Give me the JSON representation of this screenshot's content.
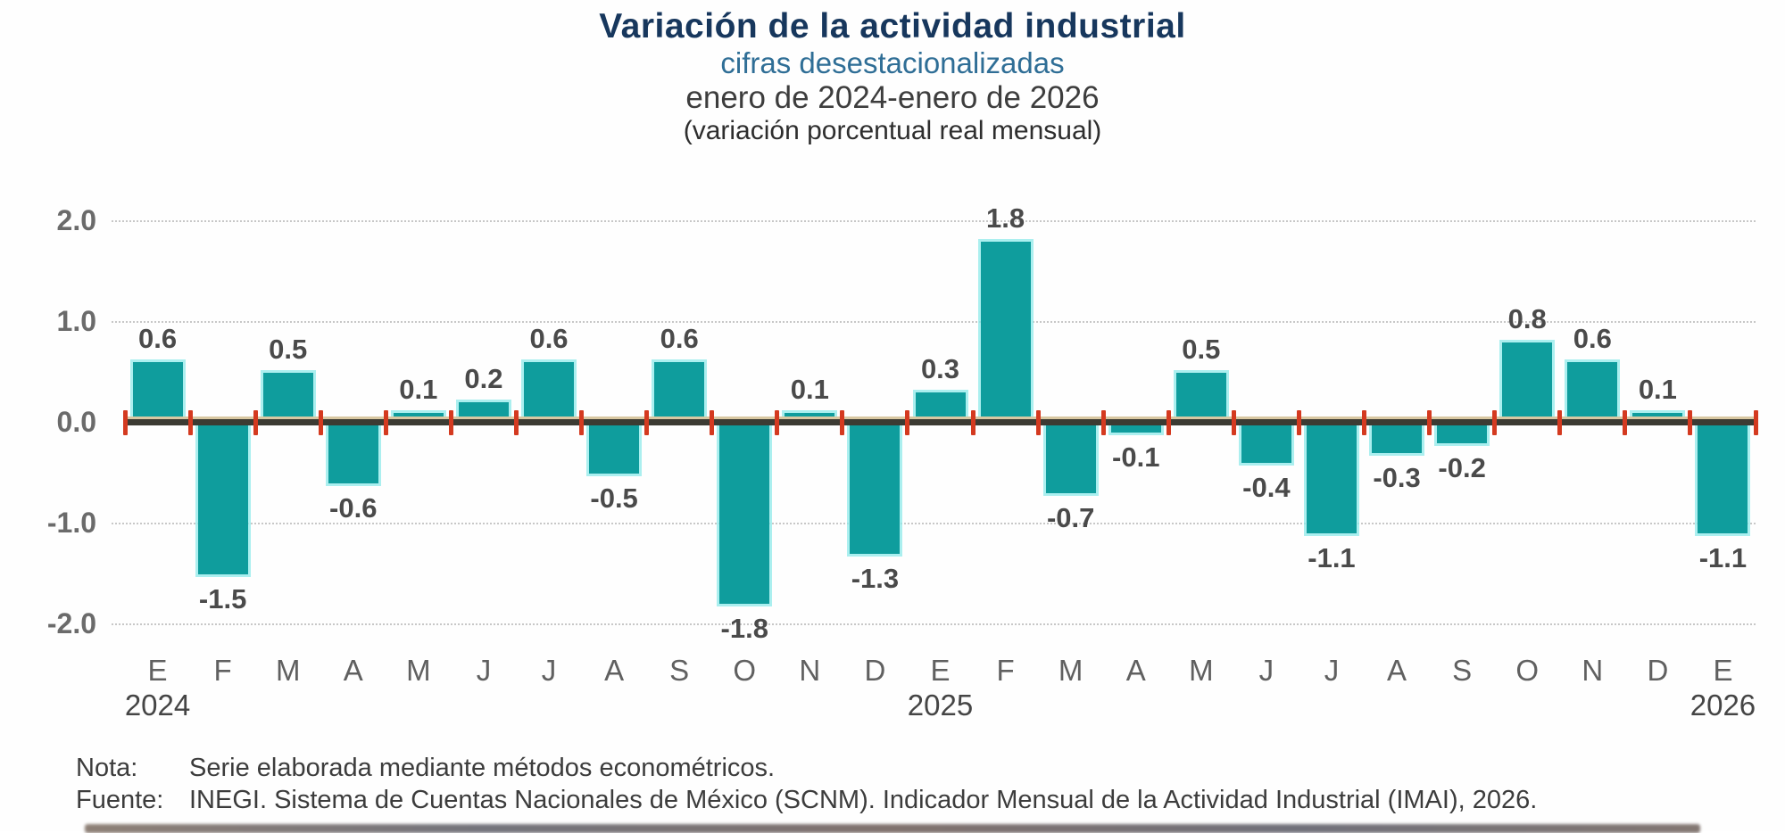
{
  "title": {
    "line1": "Variación de la actividad industrial",
    "line2": "cifras desestacionalizadas",
    "line3": "enero de 2024-enero de 2026",
    "line4": "(variación porcentual real mensual)"
  },
  "chart_data": {
    "type": "bar",
    "categories": [
      "E",
      "F",
      "M",
      "A",
      "M",
      "J",
      "J",
      "A",
      "S",
      "O",
      "N",
      "D",
      "E",
      "F",
      "M",
      "A",
      "M",
      "J",
      "J",
      "A",
      "S",
      "O",
      "N",
      "D",
      "E"
    ],
    "values": [
      0.6,
      -1.5,
      0.5,
      -0.6,
      0.1,
      0.2,
      0.6,
      -0.5,
      0.6,
      -1.8,
      0.1,
      -1.3,
      0.3,
      1.8,
      -0.7,
      -0.1,
      0.5,
      -0.4,
      -1.1,
      -0.3,
      -0.2,
      0.8,
      0.6,
      0.1,
      -1.1
    ],
    "year_labels": [
      {
        "index": 0,
        "label": "2024"
      },
      {
        "index": 12,
        "label": "2025"
      },
      {
        "index": 24,
        "label": "2026"
      }
    ],
    "ytick_labels": [
      "2.0",
      "1.0",
      "0.0",
      "-1.0",
      "-2.0"
    ],
    "yticks": [
      2.0,
      1.0,
      0.0,
      -1.0,
      -2.0
    ],
    "ylim": [
      -2.0,
      2.0
    ],
    "legend_position": "none",
    "grid": "horizontal-dotted",
    "bar_color": "#0f9d9d",
    "bar_edge_color": "#8feaea",
    "axis_line_color": "#3c3b33",
    "axis_accent_color": "#d9c8a2",
    "tick_mark_color": "#d43a20",
    "value_label_color": "#4a4a4a"
  },
  "footer": {
    "nota_label": "Nota:",
    "nota_text": "Serie elaborada mediante métodos econométricos.",
    "fuente_label": "Fuente:",
    "fuente_text": "INEGI. Sistema de Cuentas Nacionales de México (SCNM). Indicador Mensual de la Actividad Industrial (IMAI), 2026."
  }
}
